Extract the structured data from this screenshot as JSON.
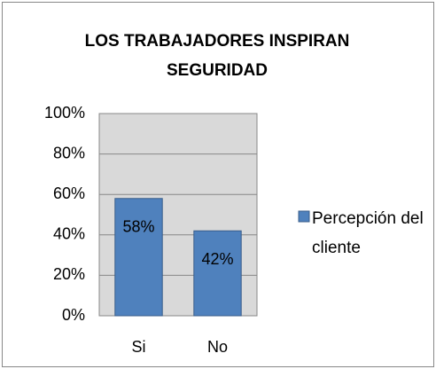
{
  "chart_data": {
    "type": "bar",
    "title": "LOS TRABAJADORES INSPIRAN SEGURIDAD",
    "categories": [
      "Si",
      "No"
    ],
    "values": [
      58,
      42
    ],
    "value_labels": [
      "58%",
      "42%"
    ],
    "series_name": "Percepción del cliente",
    "color": "#4f81bd",
    "ylim": [
      0,
      100
    ],
    "yticks": [
      {
        "value": 0,
        "label": "0%"
      },
      {
        "value": 20,
        "label": "20%"
      },
      {
        "value": 40,
        "label": "40%"
      },
      {
        "value": 60,
        "label": "60%"
      },
      {
        "value": 80,
        "label": "80%"
      },
      {
        "value": 100,
        "label": "100%"
      }
    ],
    "grid": true,
    "legend": "right"
  }
}
